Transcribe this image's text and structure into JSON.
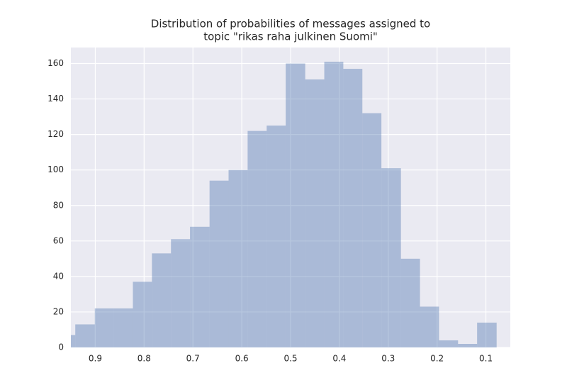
{
  "chart_data": {
    "type": "histogram",
    "title": [
      "Distribution of probabilities of messages assigned to",
      "topic \"rikas raha julkinen Suomi\""
    ],
    "bins": [
      0.078,
      0.118,
      0.157,
      0.196,
      0.235,
      0.274,
      0.314,
      0.353,
      0.392,
      0.431,
      0.47,
      0.51,
      0.549,
      0.588,
      0.627,
      0.666,
      0.706,
      0.745,
      0.784,
      0.823,
      0.862,
      0.901,
      0.941,
      0.98
    ],
    "values": [
      14,
      2,
      4,
      23,
      50,
      101,
      132,
      157,
      161,
      151,
      160,
      125,
      122,
      100,
      94,
      68,
      61,
      53,
      37,
      22,
      22,
      13,
      7
    ],
    "color": "#4c72b0",
    "xlim": [
      0.95,
      0.05
    ],
    "xticks": [
      0.9,
      0.8,
      0.7,
      0.6,
      0.5,
      0.4,
      0.3,
      0.2,
      0.1
    ],
    "ylim": [
      0,
      169
    ],
    "yticks": [
      0,
      20,
      40,
      60,
      80,
      100,
      120,
      140,
      160
    ],
    "grid": true
  }
}
